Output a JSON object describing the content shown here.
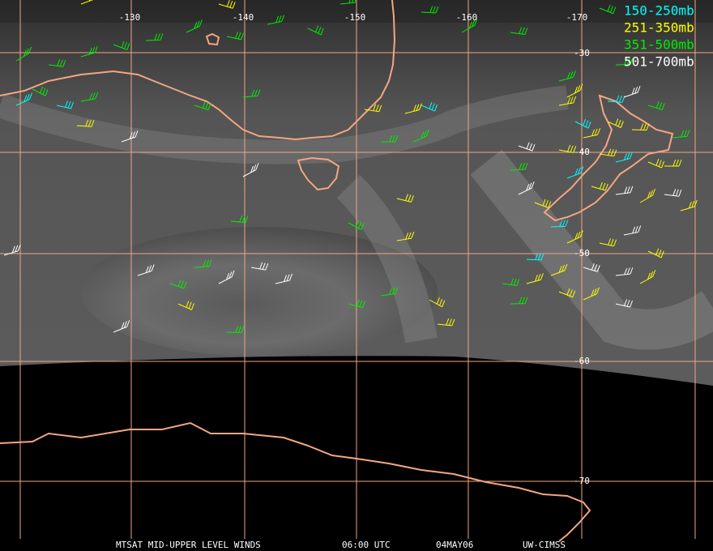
{
  "map": {
    "lon_labels": [
      "-130",
      "-140",
      "-150",
      "-160",
      "-170"
    ],
    "lat_labels": [
      "-30",
      "-40",
      "-50",
      "-60",
      "-70"
    ],
    "legend": [
      {
        "label": "150-250mb",
        "color": "#00ffff"
      },
      {
        "label": "251-350mb",
        "color": "#ffff00"
      },
      {
        "label": "351-500mb",
        "color": "#00ee00"
      },
      {
        "label": "501-700mb",
        "color": "#ffffff"
      }
    ],
    "footer": {
      "title": "MTSAT MID-UPPER LEVEL WINDS",
      "time": "06:00 UTC",
      "date": "04MAY06",
      "credit": "UW-CIMSS"
    }
  }
}
